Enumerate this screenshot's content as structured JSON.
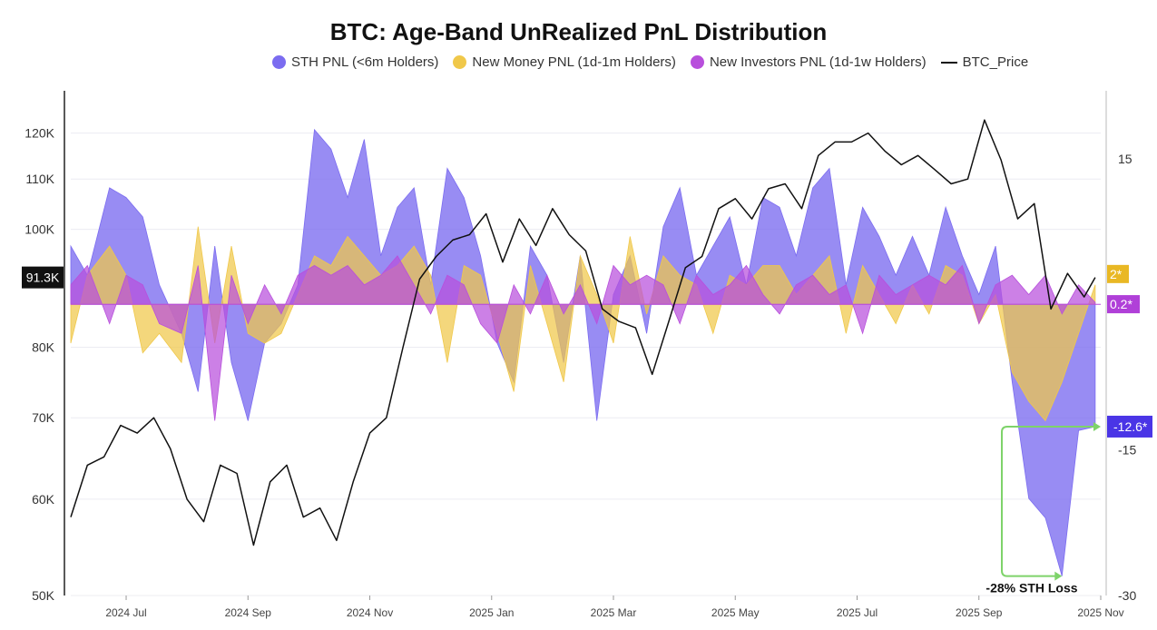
{
  "chart_data": {
    "type": "area",
    "title": "BTC: Age-Band UnRealized PnL Distribution",
    "legend": [
      {
        "key": "sth",
        "label": "STH PNL (<6m Holders)",
        "color": "#7b6cf0",
        "kind": "dot"
      },
      {
        "key": "newmoney",
        "label": "New Money PNL (1d-1m Holders)",
        "color": "#f0c84a",
        "kind": "dot"
      },
      {
        "key": "newinv",
        "label": "New Investors PNL (1d-1w Holders)",
        "color": "#b84fdc",
        "kind": "dot"
      },
      {
        "key": "price",
        "label": "BTC_Price",
        "color": "#111111",
        "kind": "line"
      }
    ],
    "left_axis": {
      "scale": "log",
      "range": [
        50000,
        130000
      ],
      "ticks": [
        {
          "v": 120000,
          "label": "120K"
        },
        {
          "v": 110000,
          "label": "110K"
        },
        {
          "v": 100000,
          "label": "100K"
        },
        {
          "v": 80000,
          "label": "80K"
        },
        {
          "v": 70000,
          "label": "70K"
        },
        {
          "v": 60000,
          "label": "60K"
        },
        {
          "v": 50000,
          "label": "50K"
        }
      ]
    },
    "right_axis": {
      "range": [
        -30,
        22
      ],
      "ticks": [
        {
          "v": 15,
          "label": "15"
        },
        {
          "v": -15,
          "label": "-15"
        },
        {
          "v": -30,
          "label": "-30"
        }
      ]
    },
    "x_ticks": [
      "2024 Jul",
      "2024 Sep",
      "2024 Nov",
      "2025 Jan",
      "2025 Mar",
      "2025 May",
      "2025 Jul",
      "2025 Sep",
      "2025 Nov"
    ],
    "x_range": [
      0,
      18.6
    ],
    "badges": {
      "price": "91.3K",
      "newmoney": "2*",
      "newinv": "0.2*",
      "sth": "-12.6*"
    },
    "annotation": "-28% STH Loss",
    "series": [
      {
        "key": "sth",
        "name": "STH PNL (<6m Holders)",
        "x": [
          0.0,
          0.3,
          0.7,
          1.0,
          1.3,
          1.6,
          2.0,
          2.3,
          2.6,
          2.9,
          3.2,
          3.5,
          3.8,
          4.1,
          4.4,
          4.7,
          5.0,
          5.3,
          5.6,
          5.9,
          6.2,
          6.5,
          6.8,
          7.1,
          7.4,
          7.7,
          8.0,
          8.3,
          8.6,
          8.9,
          9.2,
          9.5,
          9.8,
          10.1,
          10.4,
          10.7,
          11.0,
          11.3,
          11.6,
          11.9,
          12.2,
          12.5,
          12.8,
          13.1,
          13.4,
          13.7,
          14.0,
          14.3,
          14.6,
          14.9,
          15.2,
          15.5,
          15.8,
          16.1,
          16.4,
          16.7,
          17.0,
          17.3,
          17.6,
          17.9,
          18.2,
          18.5
        ],
        "values": [
          6,
          3,
          12,
          11,
          9,
          2,
          -3,
          -9,
          6,
          -6,
          -12,
          -4,
          -2,
          2,
          18,
          16,
          11,
          17,
          5,
          10,
          12,
          2,
          14,
          11,
          5,
          -4,
          -8,
          6,
          3,
          -6,
          5,
          -12,
          1,
          5,
          -3,
          8,
          12,
          3,
          6,
          9,
          2,
          11,
          10,
          5,
          12,
          14,
          2,
          10,
          7,
          3,
          7,
          3,
          10,
          5,
          1,
          6,
          -8,
          -20,
          -22,
          -28,
          -13,
          -12.6
        ]
      },
      {
        "key": "newmoney",
        "name": "New Money PNL (1d-1m Holders)",
        "x": [
          0.0,
          0.3,
          0.7,
          1.0,
          1.3,
          1.6,
          2.0,
          2.3,
          2.6,
          2.9,
          3.2,
          3.5,
          3.8,
          4.1,
          4.4,
          4.7,
          5.0,
          5.3,
          5.6,
          5.9,
          6.2,
          6.5,
          6.8,
          7.1,
          7.4,
          7.7,
          8.0,
          8.3,
          8.6,
          8.9,
          9.2,
          9.5,
          9.8,
          10.1,
          10.4,
          10.7,
          11.0,
          11.3,
          11.6,
          11.9,
          12.2,
          12.5,
          12.8,
          13.1,
          13.4,
          13.7,
          14.0,
          14.3,
          14.6,
          14.9,
          15.2,
          15.5,
          15.8,
          16.1,
          16.4,
          16.7,
          17.0,
          17.3,
          17.6,
          17.9,
          18.2,
          18.5
        ],
        "values": [
          -4,
          3,
          6,
          3,
          -5,
          -3,
          -6,
          8,
          -4,
          6,
          -3,
          -4,
          -3,
          1,
          5,
          4,
          7,
          5,
          3,
          4,
          6,
          3,
          -6,
          4,
          3,
          -3,
          -9,
          4,
          -2,
          -8,
          5,
          1,
          -4,
          7,
          -1,
          5,
          3,
          2,
          -3,
          3,
          2,
          4,
          4,
          1,
          3,
          5,
          -3,
          4,
          1,
          -2,
          2,
          -1,
          4,
          3,
          -2,
          1,
          -7,
          -10,
          -12,
          -8,
          -3,
          2
        ]
      },
      {
        "key": "newinv",
        "name": "New Investors PNL (1d-1w Holders)",
        "x": [
          0.0,
          0.3,
          0.7,
          1.0,
          1.3,
          1.6,
          2.0,
          2.3,
          2.6,
          2.9,
          3.2,
          3.5,
          3.8,
          4.1,
          4.4,
          4.7,
          5.0,
          5.3,
          5.6,
          5.9,
          6.2,
          6.5,
          6.8,
          7.1,
          7.4,
          7.7,
          8.0,
          8.3,
          8.6,
          8.9,
          9.2,
          9.5,
          9.8,
          10.1,
          10.4,
          10.7,
          11.0,
          11.3,
          11.6,
          11.9,
          12.2,
          12.5,
          12.8,
          13.1,
          13.4,
          13.7,
          14.0,
          14.3,
          14.6,
          14.9,
          15.2,
          15.5,
          15.8,
          16.1,
          16.4,
          16.7,
          17.0,
          17.3,
          17.6,
          17.9,
          18.2,
          18.5
        ],
        "values": [
          2,
          4,
          -2,
          3,
          2,
          -2,
          -3,
          4,
          -12,
          3,
          -2,
          2,
          -1,
          3,
          4,
          3,
          4,
          2,
          3,
          5,
          2,
          -1,
          3,
          2,
          -2,
          -4,
          2,
          -1,
          3,
          -1,
          2,
          -2,
          4,
          2,
          3,
          2,
          -2,
          3,
          1,
          2,
          4,
          1,
          -1,
          2,
          3,
          1,
          2,
          -3,
          3,
          1,
          2,
          3,
          2,
          4,
          -2,
          2,
          3,
          1,
          3,
          -1,
          2,
          0.2
        ]
      },
      {
        "key": "price",
        "name": "BTC_Price",
        "x": [
          0.0,
          0.3,
          0.6,
          0.9,
          1.2,
          1.5,
          1.8,
          2.1,
          2.4,
          2.7,
          3.0,
          3.3,
          3.6,
          3.9,
          4.2,
          4.5,
          4.8,
          5.1,
          5.4,
          5.7,
          6.0,
          6.3,
          6.6,
          6.9,
          7.2,
          7.5,
          7.8,
          8.1,
          8.4,
          8.7,
          9.0,
          9.3,
          9.6,
          9.9,
          10.2,
          10.5,
          10.8,
          11.1,
          11.4,
          11.7,
          12.0,
          12.3,
          12.6,
          12.9,
          13.2,
          13.5,
          13.8,
          14.1,
          14.4,
          14.7,
          15.0,
          15.3,
          15.6,
          15.9,
          16.2,
          16.5,
          16.8,
          17.1,
          17.4,
          17.7,
          18.0,
          18.3,
          18.5
        ],
        "values": [
          58000,
          64000,
          65000,
          69000,
          68000,
          70000,
          66000,
          60000,
          57500,
          64000,
          63000,
          55000,
          62000,
          64000,
          58000,
          59000,
          55500,
          62000,
          68000,
          70000,
          80000,
          91000,
          95000,
          98000,
          99000,
          103000,
          94000,
          102000,
          97000,
          104000,
          99000,
          96000,
          86000,
          84000,
          83000,
          76000,
          84000,
          93000,
          95000,
          104000,
          106000,
          102000,
          108000,
          109000,
          104000,
          115000,
          118000,
          118000,
          120000,
          116000,
          113000,
          115000,
          112000,
          109000,
          110000,
          123000,
          114000,
          102000,
          105000,
          86000,
          92000,
          88000,
          91300
        ]
      }
    ]
  }
}
